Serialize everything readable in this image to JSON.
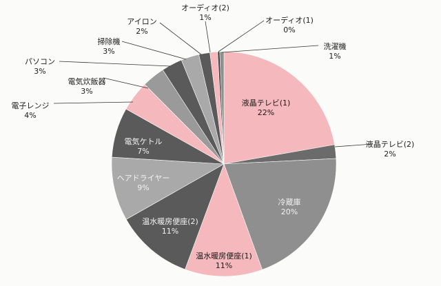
{
  "chart_data": {
    "type": "pie",
    "title": "",
    "start_angle_deg": 0,
    "direction": "clockwise",
    "colors": {
      "pink": "#f4b8bd",
      "gray_mid": "#8f8f8f",
      "gray_dark": "#5a5a5a",
      "gray_light": "#a9a9a9",
      "gray_darkest": "#3c3c3c"
    },
    "slices": [
      {
        "name": "液晶テレビ(1)",
        "label": "22%",
        "value": 22.3,
        "color": "#f4b8bd",
        "text_color": "#1a1a1a",
        "placement": "inside"
      },
      {
        "name": "液晶テレビ(2)",
        "label": "2%",
        "value": 2.0,
        "color": "#6b6b6b",
        "text_color": "#1a1a1a",
        "placement": "outside"
      },
      {
        "name": "冷蔵庫",
        "label": "20%",
        "value": 20.3,
        "color": "#8f8f8f",
        "text_color": "#f2f2f2",
        "placement": "inside"
      },
      {
        "name": "温水暖房便座(1)",
        "label": "11%",
        "value": 11.2,
        "color": "#f4b8bd",
        "text_color": "#1a1a1a",
        "placement": "inside"
      },
      {
        "name": "温水暖房便座(2)",
        "label": "11%",
        "value": 11.2,
        "color": "#5a5a5a",
        "text_color": "#f2f2f2",
        "placement": "inside"
      },
      {
        "name": "ヘアドライヤー",
        "label": "9%",
        "value": 9.2,
        "color": "#a9a9a9",
        "text_color": "#f2f2f2",
        "placement": "inside"
      },
      {
        "name": "電気ケトル",
        "label": "7%",
        "value": 7.2,
        "color": "#5a5a5a",
        "text_color": "#f2f2f2",
        "placement": "inside"
      },
      {
        "name": "電子レンジ",
        "label": "4%",
        "value": 4.4,
        "color": "#f4b8bd",
        "text_color": "#1a1a1a",
        "placement": "outside"
      },
      {
        "name": "電気炊飯器",
        "label": "3%",
        "value": 3.3,
        "color": "#9a9a9a",
        "text_color": "#1a1a1a",
        "placement": "outside"
      },
      {
        "name": "パソコン",
        "label": "3%",
        "value": 3.0,
        "color": "#5a5a5a",
        "text_color": "#1a1a1a",
        "placement": "outside"
      },
      {
        "name": "掃除機",
        "label": "3%",
        "value": 2.6,
        "color": "#a9a9a9",
        "text_color": "#1a1a1a",
        "placement": "outside"
      },
      {
        "name": "アイロン",
        "label": "2%",
        "value": 1.6,
        "color": "#5a5a5a",
        "text_color": "#1a1a1a",
        "placement": "outside"
      },
      {
        "name": "オーディオ(2)",
        "label": "1%",
        "value": 1.1,
        "color": "#f4b8bd",
        "text_color": "#1a1a1a",
        "placement": "outside"
      },
      {
        "name": "オーディオ(1)",
        "label": "0%",
        "value": 0.3,
        "color": "#3c3c3c",
        "text_color": "#1a1a1a",
        "placement": "outside"
      },
      {
        "name": "洗濯機",
        "label": "1%",
        "value": 0.6,
        "color": "#8f8f8f",
        "text_color": "#1a1a1a",
        "placement": "outside"
      }
    ]
  }
}
